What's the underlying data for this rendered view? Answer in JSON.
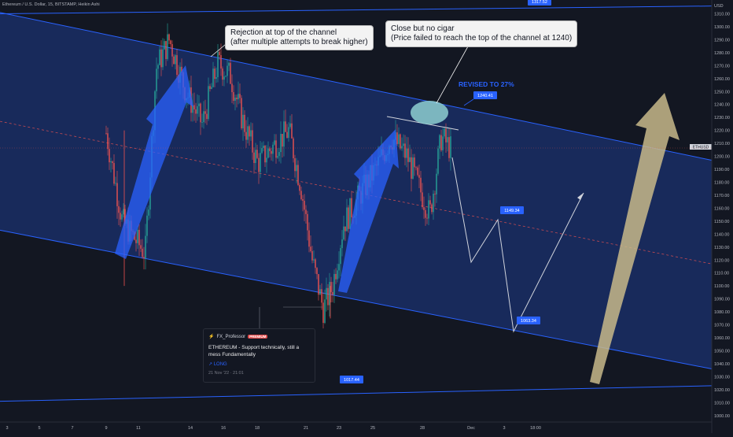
{
  "legend": {
    "title": "Ethereum / U.S. Dollar, 15, BITSTAMP, Heikin Ashi"
  },
  "price_axis": {
    "currency": "USD"
  },
  "symbol_tag": {
    "symbol": "ETHUSD",
    "price": "1206.30",
    "countdown": "07:11",
    "sub_price": "1206.20"
  },
  "callouts": {
    "rejection": {
      "line1": "Rejection at top of the channel",
      "line2": "(after multiple attempts to break higher)"
    },
    "close": {
      "line1": "Close but no cigar",
      "line2": "(Price failed to reach the top of the channel at 1240)"
    }
  },
  "revised_label": "REVISED TO 27%",
  "price_labels": {
    "top_line": "1317.52",
    "resistance": "1240.41",
    "mid": "1149.34",
    "low": "1063.34",
    "bottom_line": "1017.44"
  },
  "idea_card": {
    "author": "FX_Professor",
    "badge": "PREMIUM",
    "title": "ETHEREUM - Support technically, still a mess Fundamentally",
    "tag": "↗ LONG",
    "date": "21 Nov '22 · 21:01"
  },
  "colors": {
    "background": "#131722",
    "channel_fill": "#1e3a8a",
    "channel_line": "#2962ff",
    "arrow_blue": "#2962ff",
    "arrow_gold": "#c8b98a",
    "candle_up": "#26a69a",
    "candle_down": "#ef5350",
    "projection": "#d1d4dc",
    "midline": "#ef5350",
    "symbol_tag": "#ef5350"
  },
  "chart_data": {
    "type": "candlestick",
    "title": "Ethereum / U.S. Dollar, 15, BITSTAMP, Heikin Ashi",
    "x_ticks": [
      "3",
      "5",
      "7",
      "9",
      "11",
      "14",
      "16",
      "18",
      "21",
      "23",
      "25",
      "28",
      "Dec",
      "3",
      "18:00"
    ],
    "y_range": [
      995,
      1317
    ],
    "y_ticks": [
      1000,
      1010,
      1020,
      1030,
      1040,
      1050,
      1060,
      1070,
      1080,
      1090,
      1100,
      1110,
      1120,
      1130,
      1140,
      1150,
      1160,
      1170,
      1180,
      1190,
      1200,
      1210,
      1220,
      1230,
      1240,
      1250,
      1260,
      1270,
      1280,
      1290,
      1300,
      1310
    ],
    "price_path": [
      {
        "x": 8.0,
        "y": 1218
      },
      {
        "x": 9.0,
        "y": 1150
      },
      {
        "x": 10.5,
        "y": 1125
      },
      {
        "x": 11.2,
        "y": 1268
      },
      {
        "x": 12.0,
        "y": 1290
      },
      {
        "x": 13.0,
        "y": 1250
      },
      {
        "x": 14.0,
        "y": 1225
      },
      {
        "x": 15.0,
        "y": 1272
      },
      {
        "x": 15.8,
        "y": 1262
      },
      {
        "x": 16.5,
        "y": 1230
      },
      {
        "x": 17.5,
        "y": 1195
      },
      {
        "x": 18.5,
        "y": 1208
      },
      {
        "x": 19.5,
        "y": 1220
      },
      {
        "x": 20.3,
        "y": 1175
      },
      {
        "x": 21.0,
        "y": 1120
      },
      {
        "x": 21.7,
        "y": 1082
      },
      {
        "x": 22.3,
        "y": 1100
      },
      {
        "x": 23.0,
        "y": 1148
      },
      {
        "x": 24.0,
        "y": 1170
      },
      {
        "x": 25.0,
        "y": 1190
      },
      {
        "x": 26.0,
        "y": 1215
      },
      {
        "x": 27.0,
        "y": 1200
      },
      {
        "x": 27.7,
        "y": 1178
      },
      {
        "x": 28.3,
        "y": 1155
      },
      {
        "x": 28.8,
        "y": 1215
      },
      {
        "x": 29.2,
        "y": 1206
      }
    ],
    "projection": [
      {
        "x": 29.3,
        "y": 1206
      },
      {
        "x": 30.5,
        "y": 1122
      },
      {
        "x": 32.0,
        "y": 1152
      },
      {
        "x": 33.5,
        "y": 1063
      },
      {
        "x": 36.0,
        "y": 1177
      }
    ],
    "channel": {
      "upper": [
        {
          "x": 0,
          "y": 1311
        },
        {
          "x": 39.6,
          "y": 1197
        }
      ],
      "mid": [
        {
          "x": 0,
          "y": 1227
        },
        {
          "x": 39.6,
          "y": 1117
        }
      ],
      "lower": [
        {
          "x": 0,
          "y": 1143
        },
        {
          "x": 39.6,
          "y": 1036
        }
      ]
    },
    "horizontal_lines": [
      {
        "from": {
          "x": 0,
          "y": 1310
        },
        "to": {
          "x": 39.6,
          "y": 1316
        }
      },
      {
        "from": {
          "x": 0,
          "y": 1011
        },
        "to": {
          "x": 39.6,
          "y": 1023
        }
      }
    ],
    "annotations": [
      "1317.52",
      "1240.41",
      "1149.34",
      "1063.34",
      "1017.44",
      "REVISED TO 27%"
    ]
  }
}
